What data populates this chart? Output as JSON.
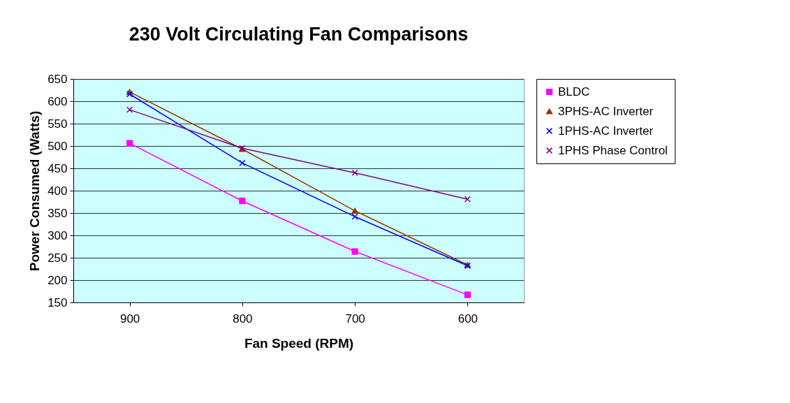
{
  "chart_data": {
    "type": "line",
    "title": "230 Volt Circulating Fan Comparisons",
    "xlabel": "Fan Speed (RPM)",
    "ylabel": "Power Consumed (Watts)",
    "categories": [
      "900",
      "800",
      "700",
      "600"
    ],
    "series": [
      {
        "name": "BLDC",
        "color": "#ff00ff",
        "marker": "square",
        "values": [
          506,
          377,
          264,
          167
        ]
      },
      {
        "name": "3PHS-AC Inverter",
        "color": "#993300",
        "marker": "triangle",
        "values": [
          621,
          493,
          355,
          234
        ]
      },
      {
        "name": "1PHS-AC Inverter",
        "color": "#0000ff",
        "marker": "cross",
        "values": [
          616,
          462,
          342,
          232
        ]
      },
      {
        "name": "1PHS Phase Control",
        "color": "#800080",
        "marker": "cross",
        "values": [
          581,
          495,
          440,
          381
        ]
      }
    ],
    "ylim": [
      150,
      650
    ],
    "yticks": [
      150,
      200,
      250,
      300,
      350,
      400,
      450,
      500,
      550,
      600,
      650
    ],
    "grid": "y",
    "legend": "right"
  }
}
